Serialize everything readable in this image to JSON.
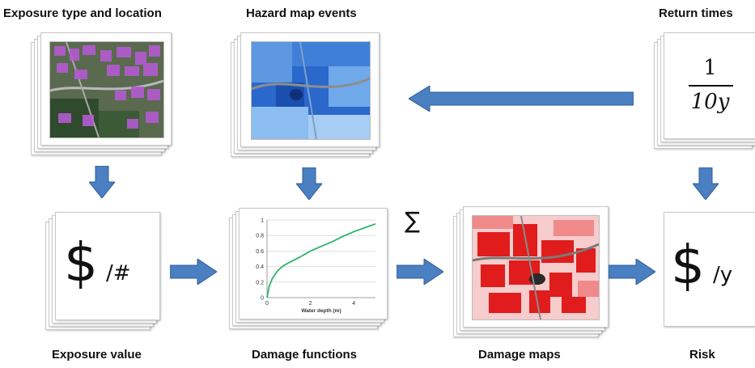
{
  "labels": {
    "exposure_type": "Exposure type and location",
    "hazard_events": "Hazard map events",
    "return_times": "Return times",
    "exposure_value": "Exposure value",
    "damage_functions": "Damage functions",
    "damage_maps": "Damage maps",
    "risk": "Risk"
  },
  "return_fraction": {
    "numerator": "1",
    "denominator": "10y"
  },
  "exposure_symbol": {
    "currency": "$",
    "unit": "/#"
  },
  "risk_symbol": {
    "currency": "$",
    "unit": "/y"
  },
  "sum_symbol": "∑",
  "colors": {
    "arrow": "#4a7fc1",
    "arrow_edge": "#2f5d96",
    "curve": "#2db36b"
  },
  "icons": [
    "right-arrow-icon",
    "left-arrow-icon",
    "down-arrow-icon",
    "sum-icon"
  ],
  "chart_data": {
    "type": "line",
    "xlabel": "Water depth (m)",
    "ylabel": "",
    "xlim": [
      0,
      5
    ],
    "ylim": [
      0,
      1
    ],
    "x_ticks": [
      "0",
      "2",
      "4"
    ],
    "y_ticks": [
      "0",
      "0.2",
      "0.4",
      "0.6",
      "0.8",
      "1"
    ],
    "grid": true,
    "series": [
      {
        "x": [
          0,
          0.1,
          0.25,
          0.5,
          0.75,
          1,
          1.5,
          2,
          2.5,
          3,
          3.5,
          4,
          4.5,
          5
        ],
        "values": [
          0,
          0.15,
          0.25,
          0.35,
          0.41,
          0.45,
          0.52,
          0.6,
          0.66,
          0.72,
          0.79,
          0.85,
          0.9,
          0.95
        ]
      }
    ]
  }
}
